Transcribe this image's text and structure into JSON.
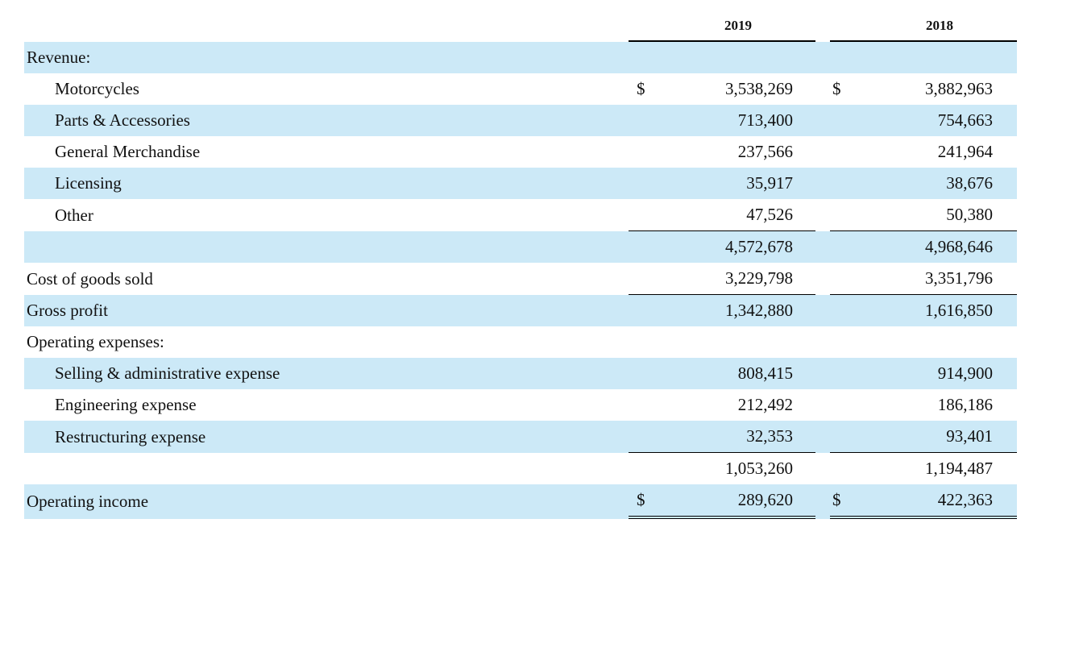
{
  "header": {
    "columns": [
      "2019",
      "2018"
    ]
  },
  "table": {
    "rows": [
      {
        "label": "Revenue:"
      },
      {
        "label": "Motorcycles",
        "currency": "$",
        "values": [
          "3,538,269",
          "3,882,963"
        ]
      },
      {
        "label": "Parts & Accessories",
        "values": [
          "713,400",
          "754,663"
        ]
      },
      {
        "label": "General Merchandise",
        "values": [
          "237,566",
          "241,964"
        ]
      },
      {
        "label": "Licensing",
        "values": [
          "35,917",
          "38,676"
        ]
      },
      {
        "label": "Other",
        "values": [
          "47,526",
          "50,380"
        ]
      },
      {
        "values": [
          "4,572,678",
          "4,968,646"
        ]
      },
      {
        "label": "Cost of goods sold",
        "values": [
          "3,229,798",
          "3,351,796"
        ]
      },
      {
        "label": "Gross profit",
        "values": [
          "1,342,880",
          "1,616,850"
        ]
      },
      {
        "label": "Operating expenses:"
      },
      {
        "label": "Selling & administrative expense",
        "values": [
          "808,415",
          "914,900"
        ]
      },
      {
        "label": "Engineering expense",
        "values": [
          "212,492",
          "186,186"
        ]
      },
      {
        "label": "Restructuring expense",
        "values": [
          "32,353",
          "93,401"
        ]
      },
      {
        "values": [
          "1,053,260",
          "1,194,487"
        ]
      },
      {
        "label": "Operating income",
        "currency": "$",
        "values": [
          "289,620",
          "422,363"
        ]
      }
    ]
  }
}
